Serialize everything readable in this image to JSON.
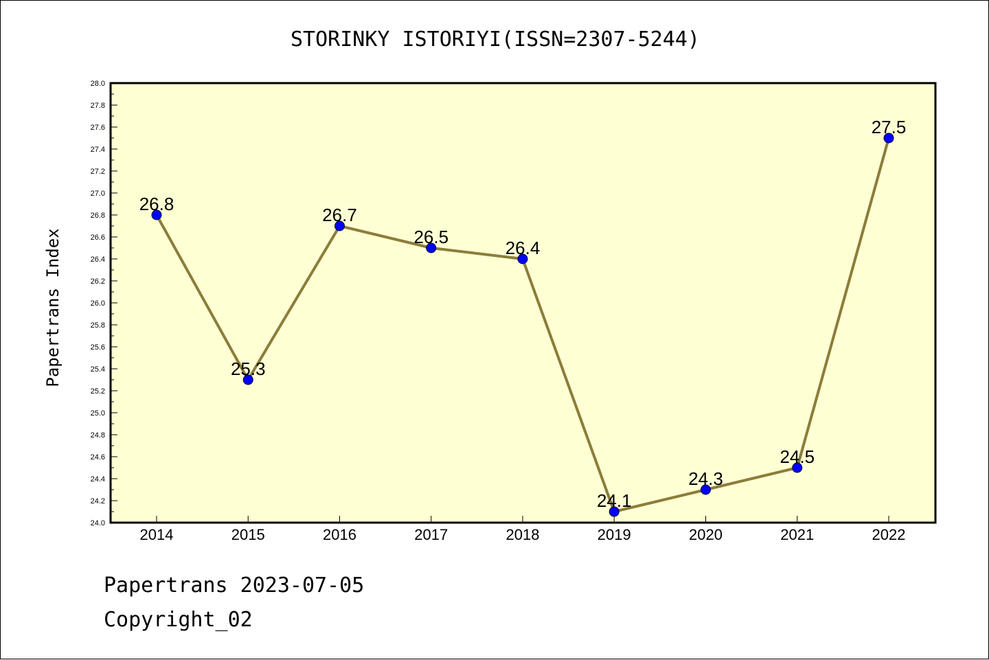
{
  "chart_data": {
    "type": "line",
    "title": "STORINKY ISTORIYI(ISSN=2307-5244)",
    "xlabel": "",
    "ylabel": "Papertrans Index",
    "categories": [
      "2014",
      "2015",
      "2016",
      "2017",
      "2018",
      "2019",
      "2020",
      "2021",
      "2022"
    ],
    "series": [
      {
        "values": [
          26.8,
          25.3,
          26.7,
          26.5,
          26.4,
          24.1,
          24.3,
          24.5,
          27.5
        ],
        "data_labels": [
          "26.8",
          "25.3",
          "26.7",
          "26.5",
          "26.4",
          "24.1",
          "24.3",
          "24.5",
          "27.5"
        ]
      }
    ],
    "ylim": [
      24.0,
      28.0
    ],
    "yticks": [
      "24.0",
      "24.2",
      "24.4",
      "24.6",
      "24.8",
      "25.0",
      "25.2",
      "25.4",
      "25.6",
      "25.8",
      "26.0",
      "26.2",
      "26.4",
      "26.6",
      "26.8",
      "27.0",
      "27.2",
      "27.4",
      "27.6",
      "27.8",
      "28.0"
    ],
    "grid": false,
    "colors": {
      "plot_background": "#ffffd4",
      "line": "#8b7d3a",
      "marker": "#0000ff"
    }
  },
  "footer": {
    "line1": "Papertrans 2023-07-05",
    "line2": "Copyright_02"
  }
}
